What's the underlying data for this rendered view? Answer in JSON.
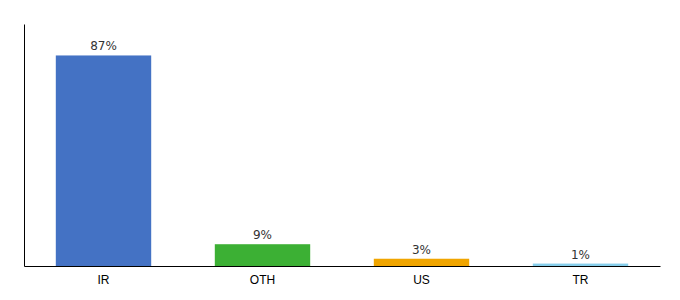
{
  "chart_data": {
    "type": "bar",
    "categories": [
      "IR",
      "OTH",
      "US",
      "TR"
    ],
    "values": [
      87,
      9,
      3,
      1
    ],
    "value_labels": [
      "87%",
      "9%",
      "3%",
      "1%"
    ],
    "colors": [
      "#4472c4",
      "#3cb034",
      "#f0a500",
      "#87ceeb"
    ],
    "ylim": [
      0,
      100
    ],
    "data_labels": true,
    "tick_labels": "x"
  }
}
